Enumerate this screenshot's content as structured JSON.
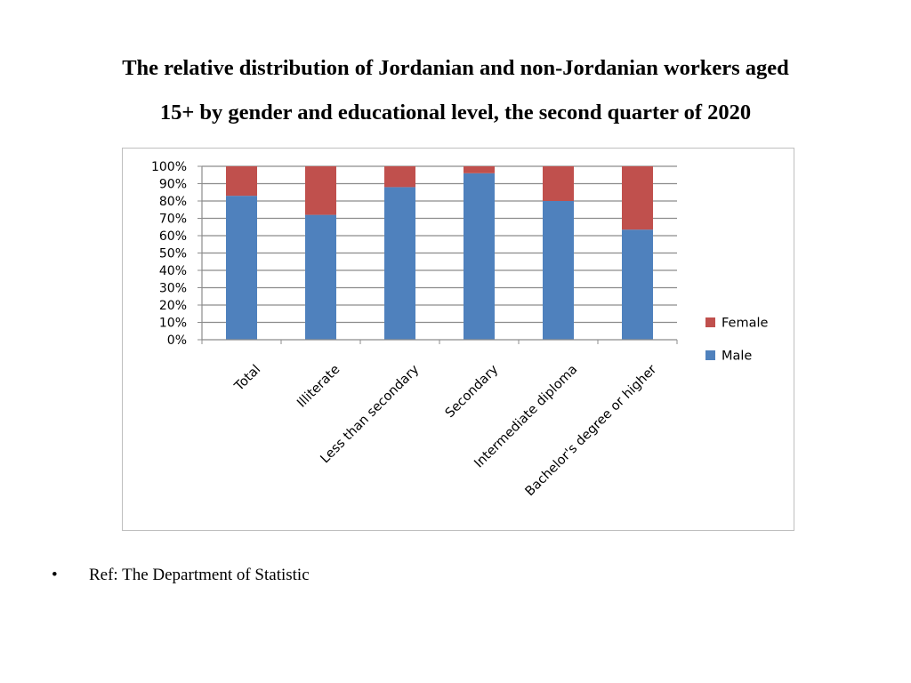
{
  "slide": {
    "title_line1": "The relative distribution of Jordanian and non-Jordanian workers aged",
    "title_line2": "15+ by gender and educational level, the second quarter of 2020",
    "bullet": "•",
    "reference": "Ref: The Department of Statistic"
  },
  "chart_data": {
    "type": "bar",
    "stacked": true,
    "categories": [
      "Total",
      "Illiterate",
      "Less than secondary",
      "Secondary",
      "Intermediate diploma",
      "Bachelor's degree or higher"
    ],
    "series": [
      {
        "name": "Male",
        "color": "#4f81bd",
        "values": [
          83,
          72,
          88,
          96,
          80,
          63.5
        ]
      },
      {
        "name": "Female",
        "color": "#c0504d",
        "values": [
          17,
          28,
          12,
          4,
          20,
          36.5
        ]
      }
    ],
    "ylim": [
      0,
      100
    ],
    "yticks": [
      "0%",
      "10%",
      "20%",
      "30%",
      "40%",
      "50%",
      "60%",
      "70%",
      "80%",
      "90%",
      "100%"
    ],
    "grid": true,
    "legend_position": "right",
    "legend": [
      "Female",
      "Male"
    ]
  }
}
